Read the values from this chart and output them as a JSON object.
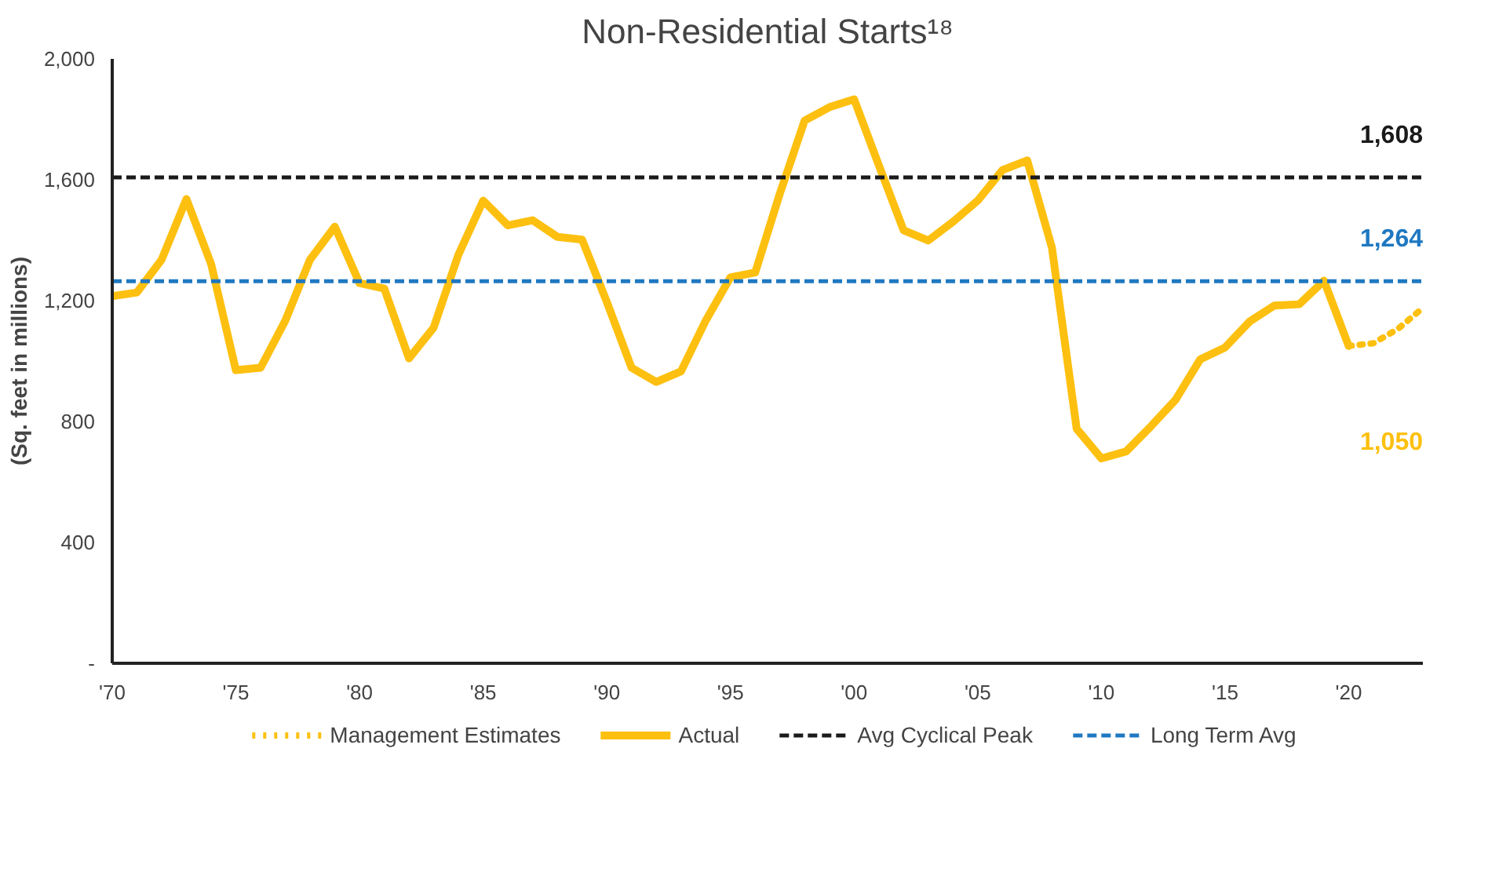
{
  "chart_data": {
    "type": "line",
    "title": "Non-Residential Starts¹⁸",
    "ylabel": "(Sq. feet in millions)",
    "xlim": [
      1970,
      2023
    ],
    "ylim": [
      0,
      2000
    ],
    "xticks": [
      {
        "value": 1970,
        "label": "'70"
      },
      {
        "value": 1975,
        "label": "'75"
      },
      {
        "value": 1980,
        "label": "'80"
      },
      {
        "value": 1985,
        "label": "'85"
      },
      {
        "value": 1990,
        "label": "'90"
      },
      {
        "value": 1995,
        "label": "'95"
      },
      {
        "value": 2000,
        "label": "'00"
      },
      {
        "value": 2005,
        "label": "'05"
      },
      {
        "value": 2010,
        "label": "'10"
      },
      {
        "value": 2015,
        "label": "'15"
      },
      {
        "value": 2020,
        "label": "'20"
      }
    ],
    "yticks": [
      {
        "value": 0,
        "label": "-"
      },
      400,
      800,
      {
        "value": 1200,
        "label": "1,200"
      },
      {
        "value": 1600,
        "label": "1,600"
      },
      {
        "value": 2000,
        "label": "2,000"
      }
    ],
    "annotations": [
      {
        "text": "1,608",
        "x": 2023,
        "y": 1608
      },
      {
        "text": "1,264",
        "x": 2023,
        "y": 1264
      },
      "1,050"
    ],
    "grid": false,
    "legend": "bottom",
    "marker": "none",
    "series": [
      {
        "name": "Management Estimates",
        "color": "#fdc010",
        "line_style": "dotted",
        "x": [
          2020,
          2021,
          2022,
          2023
        ],
        "values": [
          1050,
          1059,
          1107,
          1176
        ]
      },
      {
        "name": "Actual",
        "color": "#fdc010",
        "line_style": "solid",
        "x": [
          1970,
          1971,
          1972,
          1973,
          1974,
          1975,
          1976,
          1977,
          1978,
          1979,
          1980,
          1981,
          1982,
          1983,
          1984,
          1985,
          1986,
          1987,
          1988,
          1989,
          1990,
          1991,
          1992,
          1993,
          1994,
          1995,
          1996,
          1997,
          1998,
          1999,
          2000,
          2001,
          2002,
          2003,
          2004,
          2005,
          2006,
          2007,
          2008,
          2009,
          2010,
          2011,
          2012,
          2013,
          2014,
          2015,
          2016,
          2017,
          2018,
          2019,
          2020
        ],
        "values": [
          1215,
          1227,
          1336,
          1536,
          1321,
          970,
          978,
          1134,
          1336,
          1445,
          1258,
          1240,
          1009,
          1111,
          1352,
          1531,
          1449,
          1466,
          1411,
          1402,
          1196,
          978,
          931,
          966,
          1134,
          1277,
          1293,
          1555,
          1796,
          1840,
          1866,
          1648,
          1433,
          1399,
          1461,
          1531,
          1632,
          1664,
          1375,
          776,
          678,
          701,
          784,
          872,
          1006,
          1045,
          1131,
          1184,
          1188,
          1266,
          1050
        ]
      }
    ],
    "ref_lines": [
      {
        "axis": "y",
        "value": 1608,
        "label": "Avg Cyclical Peak",
        "color": "#1a1a1a",
        "line_style": "dashed"
      },
      {
        "axis": "y",
        "value": 1264,
        "label": "Long Term Avg",
        "color": "#1f78c1",
        "line_style": "dashed"
      }
    ]
  }
}
